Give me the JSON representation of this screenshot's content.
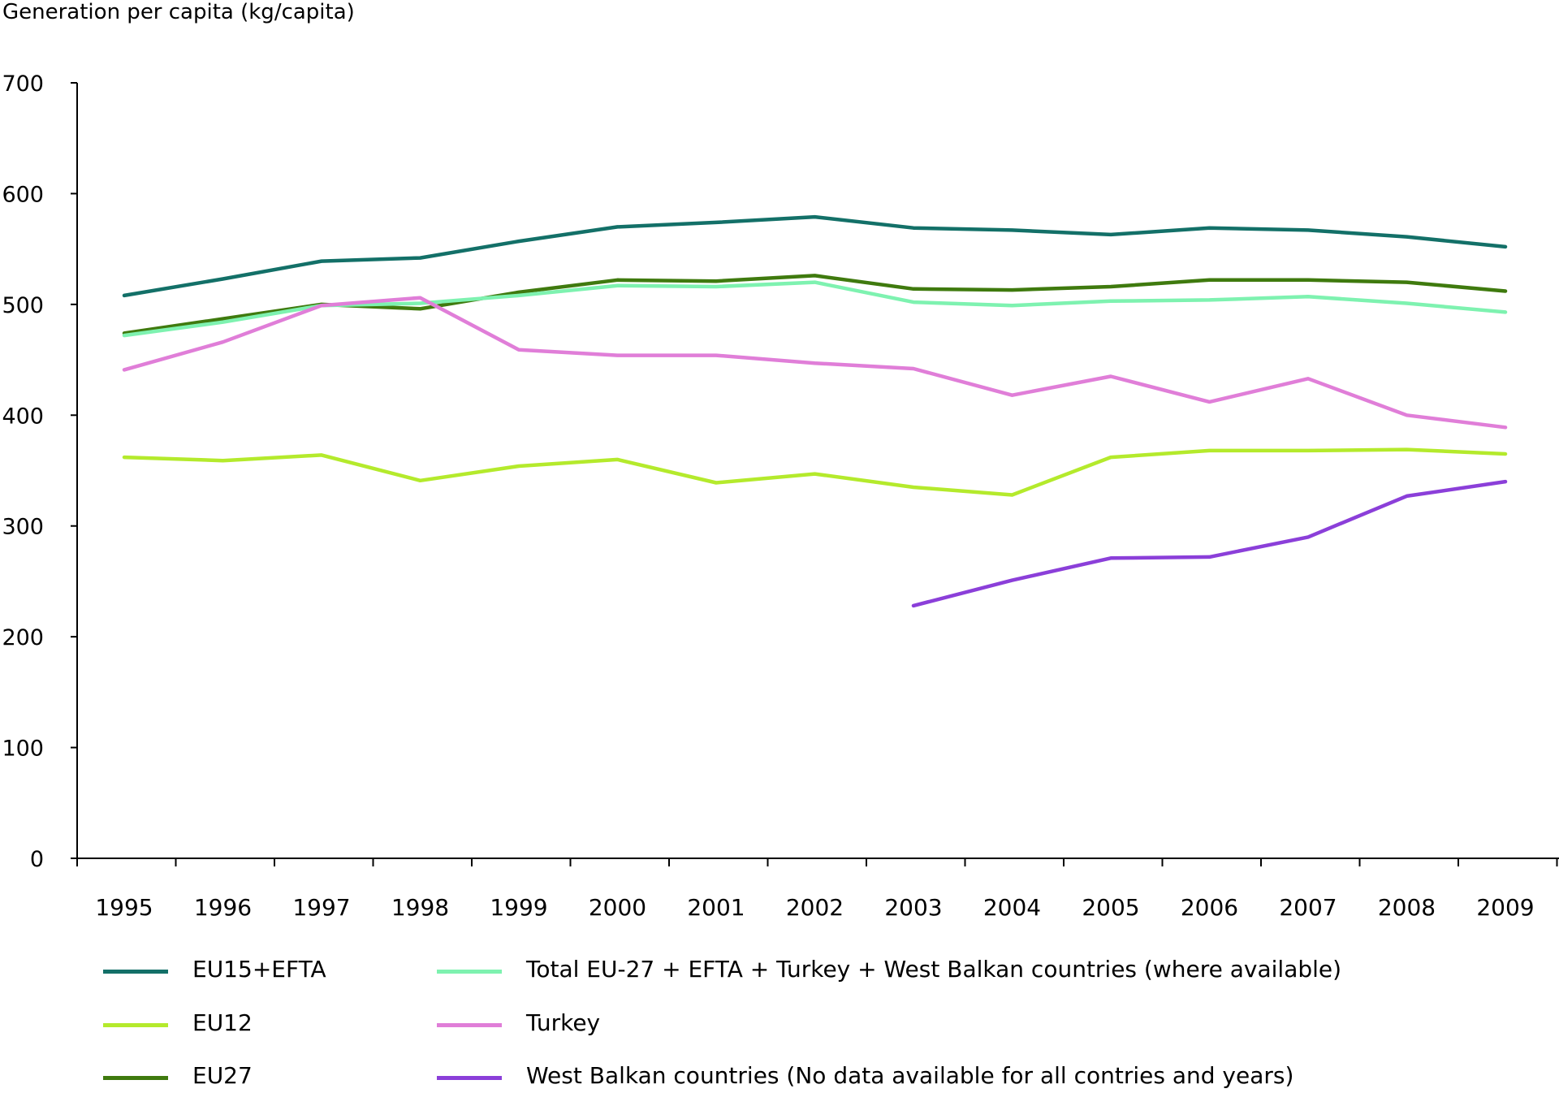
{
  "chart_data": {
    "type": "line",
    "ylabel": "Generation per capita (kg/capita)",
    "xlabel": "",
    "ylim": [
      0,
      700
    ],
    "yticks": [
      0,
      100,
      200,
      300,
      400,
      500,
      600,
      700
    ],
    "x": [
      "1995",
      "1996",
      "1997",
      "1998",
      "1999",
      "2000",
      "2001",
      "2002",
      "2003",
      "2004",
      "2005",
      "2006",
      "2007",
      "2008",
      "2009"
    ],
    "grid": false,
    "legend_position": "bottom",
    "series": [
      {
        "name": "EU15+EFTA",
        "color": "#137068",
        "values": [
          508,
          523,
          539,
          542,
          557,
          570,
          574,
          579,
          569,
          567,
          563,
          569,
          567,
          561,
          552
        ]
      },
      {
        "name": "EU12",
        "color": "#b4ea2c",
        "values": [
          362,
          359,
          364,
          341,
          354,
          360,
          339,
          347,
          335,
          328,
          362,
          368,
          368,
          369,
          365
        ]
      },
      {
        "name": "EU27",
        "color": "#3f7a0e",
        "values": [
          474,
          487,
          500,
          496,
          511,
          522,
          521,
          526,
          514,
          513,
          516,
          522,
          522,
          520,
          512
        ]
      },
      {
        "name": "Total EU-27 + EFTA + Turkey + West Balkan countries (where available)",
        "color": "#7ef2b0",
        "values": [
          472,
          484,
          499,
          501,
          508,
          517,
          516,
          520,
          502,
          499,
          503,
          504,
          507,
          501,
          493
        ]
      },
      {
        "name": "Turkey",
        "color": "#e07ed8",
        "values": [
          441,
          466,
          499,
          506,
          459,
          454,
          454,
          447,
          442,
          418,
          435,
          412,
          433,
          400,
          389
        ]
      },
      {
        "name": "West Balkan countries (No data available for all contries and years)",
        "color": "#8b3fd9",
        "values": [
          null,
          null,
          null,
          null,
          null,
          null,
          null,
          null,
          228,
          251,
          271,
          272,
          290,
          327,
          340
        ]
      }
    ]
  }
}
